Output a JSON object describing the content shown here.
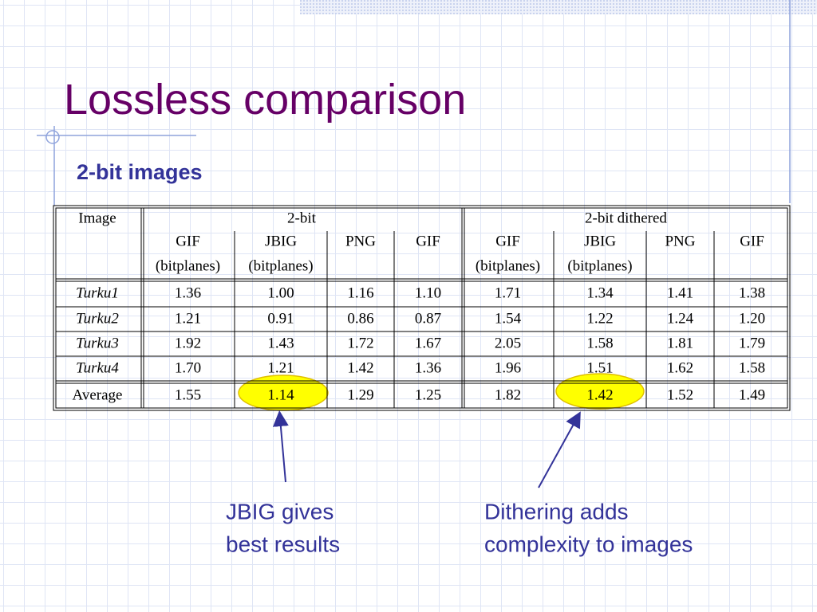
{
  "title": "Lossless comparison",
  "subtitle": "2-bit images",
  "table": {
    "corner": "Image",
    "groups": [
      "2-bit",
      "2-bit dithered"
    ],
    "columns": [
      [
        "GIF",
        "(bitplanes)"
      ],
      [
        "JBIG",
        "(bitplanes)"
      ],
      [
        "PNG"
      ],
      [
        "GIF"
      ],
      [
        "GIF",
        "(bitplanes)"
      ],
      [
        "JBIG",
        "(bitplanes)"
      ],
      [
        "PNG"
      ],
      [
        "GIF"
      ]
    ],
    "rows": [
      {
        "name": "Turku1",
        "values": [
          "1.36",
          "1.00",
          "1.16",
          "1.10",
          "1.71",
          "1.34",
          "1.41",
          "1.38"
        ]
      },
      {
        "name": "Turku2",
        "values": [
          "1.21",
          "0.91",
          "0.86",
          "0.87",
          "1.54",
          "1.22",
          "1.24",
          "1.20"
        ]
      },
      {
        "name": "Turku3",
        "values": [
          "1.92",
          "1.43",
          "1.72",
          "1.67",
          "2.05",
          "1.58",
          "1.81",
          "1.79"
        ]
      },
      {
        "name": "Turku4",
        "values": [
          "1.70",
          "1.21",
          "1.42",
          "1.36",
          "1.96",
          "1.51",
          "1.62",
          "1.58"
        ]
      }
    ],
    "average": {
      "name": "Average",
      "values": [
        "1.55",
        "1.14",
        "1.29",
        "1.25",
        "1.82",
        "1.42",
        "1.52",
        "1.49"
      ]
    }
  },
  "annotations": [
    [
      "JBIG gives",
      "best results"
    ],
    [
      "Dithering adds",
      "complexity to images"
    ]
  ]
}
